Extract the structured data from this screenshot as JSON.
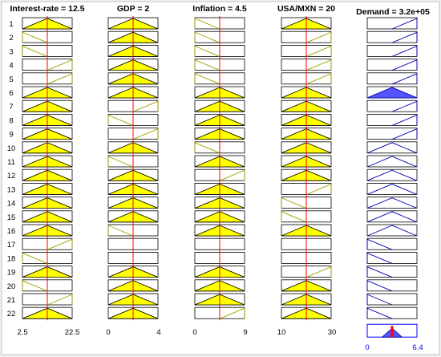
{
  "inputs": [
    {
      "header": "Interest-rate = 12.5",
      "range": [
        2.5,
        22.5
      ],
      "ticks": {
        "min": "2.5",
        "max": "22.5"
      },
      "value": 12.5,
      "rows": [
        {
          "mf": "mid",
          "act": 1
        },
        {
          "mf": "low",
          "act": 0
        },
        {
          "mf": "low",
          "act": 0
        },
        {
          "mf": "high",
          "act": 0
        },
        {
          "mf": "high",
          "act": 0
        },
        {
          "mf": "mid",
          "act": 1
        },
        {
          "mf": "mid",
          "act": 1
        },
        {
          "mf": "mid",
          "act": 1
        },
        {
          "mf": "mid",
          "act": 1
        },
        {
          "mf": "mid",
          "act": 1
        },
        {
          "mf": "mid",
          "act": 1
        },
        {
          "mf": "mid",
          "act": 1
        },
        {
          "mf": "mid",
          "act": 1
        },
        {
          "mf": "mid",
          "act": 1
        },
        {
          "mf": "mid",
          "act": 1
        },
        {
          "mf": "mid",
          "act": 1
        },
        {
          "mf": "high",
          "act": 0
        },
        {
          "mf": "low",
          "act": 0
        },
        {
          "mf": "mid",
          "act": 1
        },
        {
          "mf": "low",
          "act": 0
        },
        {
          "mf": "high",
          "act": 0
        },
        {
          "mf": "mid",
          "act": 1
        }
      ]
    },
    {
      "header": "GDP = 2",
      "range": [
        0,
        4
      ],
      "ticks": {
        "min": "0",
        "max": "4"
      },
      "value": 2,
      "rows": [
        {
          "mf": "mid",
          "act": 1
        },
        {
          "mf": "mid",
          "act": 1
        },
        {
          "mf": "mid",
          "act": 1
        },
        {
          "mf": "mid",
          "act": 1
        },
        {
          "mf": "mid",
          "act": 1
        },
        {
          "mf": "mid",
          "act": 1
        },
        {
          "mf": "high",
          "act": 0
        },
        {
          "mf": "low",
          "act": 0
        },
        {
          "mf": "high",
          "act": 0
        },
        {
          "mf": "mid",
          "act": 1
        },
        {
          "mf": "low",
          "act": 0
        },
        {
          "mf": "mid",
          "act": 1
        },
        {
          "mf": "mid",
          "act": 1
        },
        {
          "mf": "mid",
          "act": 1
        },
        {
          "mf": "mid",
          "act": 1
        },
        {
          "mf": "low",
          "act": 0
        },
        {
          "mf": null
        },
        {
          "mf": null
        },
        {
          "mf": "mid",
          "act": 1
        },
        {
          "mf": "mid",
          "act": 1
        },
        {
          "mf": "mid",
          "act": 1
        },
        {
          "mf": "mid",
          "act": 1
        }
      ]
    },
    {
      "header": "Inflation = 4.5",
      "range": [
        0,
        9
      ],
      "ticks": {
        "min": "0",
        "max": "9"
      },
      "value": 4.5,
      "rows": [
        {
          "mf": "low",
          "act": 0
        },
        {
          "mf": "low",
          "act": 0
        },
        {
          "mf": "low",
          "act": 0
        },
        {
          "mf": "low",
          "act": 0
        },
        {
          "mf": "low",
          "act": 0
        },
        {
          "mf": "mid",
          "act": 1
        },
        {
          "mf": "mid",
          "act": 1
        },
        {
          "mf": "mid",
          "act": 1
        },
        {
          "mf": "mid",
          "act": 1
        },
        {
          "mf": "low",
          "act": 0
        },
        {
          "mf": "mid",
          "act": 1
        },
        {
          "mf": "high",
          "act": 0
        },
        {
          "mf": "mid",
          "act": 1
        },
        {
          "mf": "mid",
          "act": 1
        },
        {
          "mf": "mid",
          "act": 1
        },
        {
          "mf": "mid",
          "act": 1
        },
        {
          "mf": null
        },
        {
          "mf": null
        },
        {
          "mf": "mid",
          "act": 1
        },
        {
          "mf": "mid",
          "act": 1
        },
        {
          "mf": "mid",
          "act": 1
        },
        {
          "mf": "high",
          "act": 0
        }
      ]
    },
    {
      "header": "USA/MXN = 20",
      "range": [
        10,
        30
      ],
      "ticks": {
        "min": "10",
        "max": "30"
      },
      "value": 20,
      "rows": [
        {
          "mf": "mid",
          "act": 1
        },
        {
          "mf": "high",
          "act": 0
        },
        {
          "mf": "high",
          "act": 0
        },
        {
          "mf": "high",
          "act": 0
        },
        {
          "mf": "high",
          "act": 0
        },
        {
          "mf": "mid",
          "act": 1
        },
        {
          "mf": "mid",
          "act": 1
        },
        {
          "mf": "mid",
          "act": 1
        },
        {
          "mf": "mid",
          "act": 1
        },
        {
          "mf": "mid",
          "act": 1
        },
        {
          "mf": "mid",
          "act": 1
        },
        {
          "mf": "mid",
          "act": 1
        },
        {
          "mf": "high",
          "act": 0
        },
        {
          "mf": "low",
          "act": 0
        },
        {
          "mf": "low",
          "act": 0
        },
        {
          "mf": "mid",
          "act": 1
        },
        {
          "mf": null
        },
        {
          "mf": null
        },
        {
          "mf": "high",
          "act": 0
        },
        {
          "mf": "mid",
          "act": 1
        },
        {
          "mf": "mid",
          "act": 1
        },
        {
          "mf": "mid",
          "act": 1
        }
      ]
    }
  ],
  "output": {
    "header": "Demand = 3.2e+05",
    "range": [
      0,
      6.4
    ],
    "ticks": {
      "min": "0",
      "max": "6.4"
    },
    "value": 3.2,
    "rows": [
      {
        "mf": "high",
        "act": 0
      },
      {
        "mf": "high",
        "act": 0
      },
      {
        "mf": "high",
        "act": 0
      },
      {
        "mf": "high",
        "act": 0
      },
      {
        "mf": "high",
        "act": 0
      },
      {
        "mf": "mid",
        "act": 1
      },
      {
        "mf": "high",
        "act": 0
      },
      {
        "mf": "high",
        "act": 0
      },
      {
        "mf": "high",
        "act": 0
      },
      {
        "mf": "mid",
        "act": 0
      },
      {
        "mf": "mid",
        "act": 0
      },
      {
        "mf": "mid",
        "act": 0
      },
      {
        "mf": "mid",
        "act": 0
      },
      {
        "mf": "mid",
        "act": 0
      },
      {
        "mf": "mid",
        "act": 0
      },
      {
        "mf": "mid",
        "act": 0
      },
      {
        "mf": "low",
        "act": 0
      },
      {
        "mf": "low",
        "act": 0
      },
      {
        "mf": "low",
        "act": 0
      },
      {
        "mf": "low",
        "act": 0
      },
      {
        "mf": "low",
        "act": 0
      },
      {
        "mf": "low",
        "act": 0
      }
    ]
  },
  "row_labels": [
    "1",
    "2",
    "3",
    "4",
    "5",
    "6",
    "7",
    "8",
    "9",
    "10",
    "11",
    "12",
    "13",
    "14",
    "15",
    "16",
    "17",
    "18",
    "19",
    "20",
    "21",
    "22"
  ],
  "colors": {
    "window_bg": "#f0f0f0",
    "panel_bg": "#ffffff",
    "box_border": "#000000",
    "input_mf_line": "#a0a000",
    "input_mf_fill": "#ffff00",
    "output_mf_line": "#0000b0",
    "output_mf_fill": "#5555ff",
    "marker": "#ff0000",
    "output_box_border": "#0000ff"
  }
}
